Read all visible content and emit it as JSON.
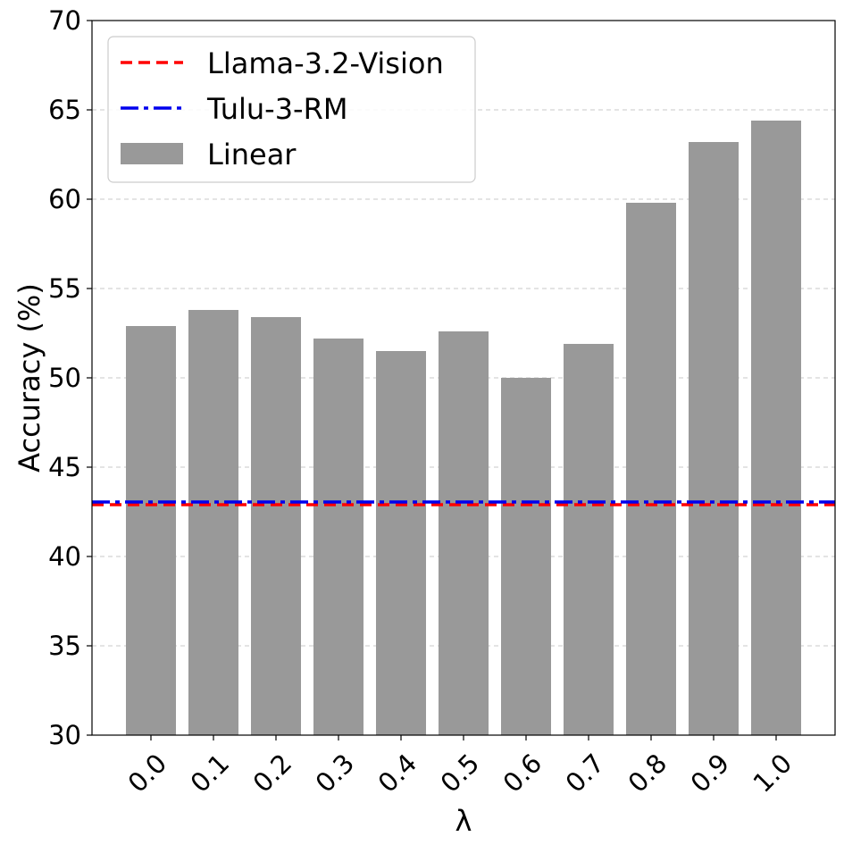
{
  "chart_data": {
    "type": "bar",
    "categories": [
      "0.0",
      "0.1",
      "0.2",
      "0.3",
      "0.4",
      "0.5",
      "0.6",
      "0.7",
      "0.8",
      "0.9",
      "1.0"
    ],
    "series": [
      {
        "name": "Linear",
        "values": [
          52.9,
          53.8,
          53.4,
          52.2,
          51.5,
          52.6,
          50.0,
          51.9,
          59.8,
          63.2,
          64.4
        ],
        "color": "#999999"
      }
    ],
    "reference_lines": [
      {
        "name": "Llama-3.2-Vision",
        "value": 42.9,
        "color": "#ff0000",
        "style": "dashed"
      },
      {
        "name": "Tulu-3-RM",
        "value": 43.05,
        "color": "#0000ee",
        "style": "dash-dot"
      }
    ],
    "title": "",
    "xlabel": "λ",
    "ylabel": "Accuracy (%)",
    "ylim": [
      30,
      70
    ],
    "yticks": [
      "30",
      "35",
      "40",
      "45",
      "50",
      "55",
      "60",
      "65",
      "70"
    ],
    "grid": "y-dashed",
    "legend_position": "top-left"
  }
}
